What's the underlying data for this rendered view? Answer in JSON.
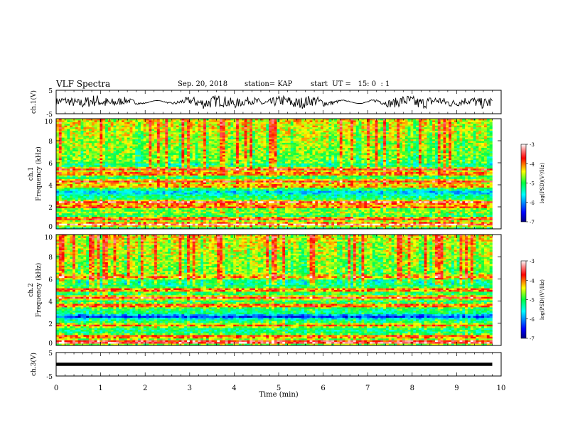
{
  "header": {
    "title": "VLF Spectra",
    "date": "Sep. 20, 2018",
    "station": "station= KAP",
    "start": "start  UT =   15: 0  : 1"
  },
  "chart_data": [
    {
      "type": "line",
      "panel": "ch1-waveform",
      "ylabel": "ch.1(V)",
      "ylim": [
        -5,
        5
      ],
      "yticks": [
        "-5",
        "5"
      ],
      "xlim": [
        0,
        10
      ],
      "series_color": "#000000"
    },
    {
      "type": "heatmap",
      "panel": "ch1-spectrogram",
      "ylabel_line1": "ch.1",
      "ylabel_line2": "Frequency  (kHz)",
      "ylim": [
        0,
        10
      ],
      "yticks": [
        "0",
        "2",
        "4",
        "6",
        "8",
        "10"
      ],
      "xlim": [
        0,
        9.8
      ],
      "colorbar": {
        "label": "log(PSD)(V²/Hz)",
        "range": [
          -7,
          -3
        ],
        "ticks": [
          "-3",
          "-4",
          "-5",
          "-6",
          "-7"
        ]
      },
      "bands_khz": [
        {
          "f": 0.4,
          "level": 0.95
        },
        {
          "f": 0.9,
          "level": 0.85
        },
        {
          "f": 1.5,
          "level": 0.6
        },
        {
          "f": 2.0,
          "level": 0.8
        },
        {
          "f": 2.4,
          "level": 0.9
        },
        {
          "f": 3.3,
          "level": 0.3
        },
        {
          "f": 3.9,
          "level": 0.75
        },
        {
          "f": 4.3,
          "level": 0.85
        },
        {
          "f": 5.0,
          "level": 0.8
        },
        {
          "f": 5.4,
          "level": 0.85
        }
      ]
    },
    {
      "type": "heatmap",
      "panel": "ch2-spectrogram",
      "ylabel_line1": "ch.2",
      "ylabel_line2": "Frequency  (kHz)",
      "ylim": [
        0,
        10
      ],
      "yticks": [
        "0",
        "2",
        "4",
        "6",
        "8",
        "10"
      ],
      "xlim": [
        0,
        9.8
      ],
      "colorbar": {
        "label": "log(PSD)(V²/Hz)",
        "range": [
          -7,
          -3
        ],
        "ticks": [
          "-3",
          "-4",
          "-5",
          "-6",
          "-7"
        ]
      },
      "bands_khz": [
        {
          "f": 0.3,
          "level": 0.95
        },
        {
          "f": 0.8,
          "level": 0.8
        },
        {
          "f": 1.8,
          "level": 0.75
        },
        {
          "f": 2.6,
          "level": 0.15
        },
        {
          "f": 3.6,
          "level": 0.8
        },
        {
          "f": 4.3,
          "level": 0.85
        },
        {
          "f": 5.0,
          "level": 0.8
        },
        {
          "f": 6.2,
          "level": 0.75
        }
      ]
    },
    {
      "type": "line",
      "panel": "ch3-waveform",
      "ylabel": "ch.3(V)",
      "ylim": [
        -5,
        5
      ],
      "yticks": [
        "-5",
        "5"
      ],
      "xlim": [
        0,
        10
      ],
      "constant_value": 0,
      "series_color": "#000000"
    }
  ],
  "xaxis": {
    "label": "Time  (min)",
    "ticks": [
      "0",
      "1",
      "2",
      "3",
      "4",
      "5",
      "6",
      "7",
      "8",
      "9",
      "10"
    ],
    "range": [
      0,
      10
    ]
  }
}
